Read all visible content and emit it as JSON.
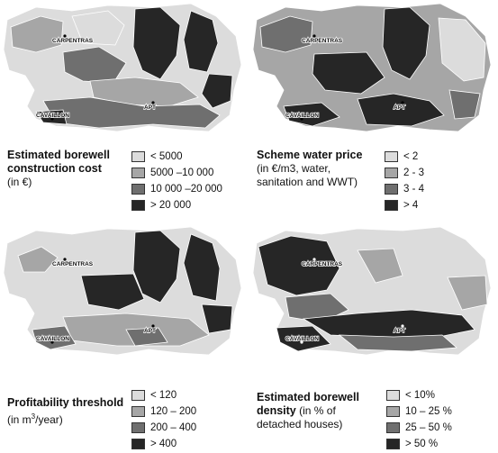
{
  "panels": [
    {
      "id": "construction-cost",
      "title": "Estimated borewell construction cost",
      "title_line1": "Estimated borewell",
      "title_line2": "construction cost",
      "subtitle_prefix": "(in ",
      "subtitle_unit": "€",
      "subtitle_suffix": ")",
      "legend": [
        {
          "label": "< 5000",
          "color": "#dcdcdc"
        },
        {
          "label": "5000 –10 000",
          "color": "#a6a6a6"
        },
        {
          "label": "10 000 –20 000",
          "color": "#6f6f6f"
        },
        {
          "label": "> 20 000",
          "color": "#262626"
        }
      ]
    },
    {
      "id": "water-price",
      "title": "Scheme water price",
      "subtitle_line1": "(in €/m3, water,",
      "subtitle_line2": "sanitation and WWT)",
      "legend": [
        {
          "label": "< 2",
          "color": "#dcdcdc"
        },
        {
          "label": "2 - 3",
          "color": "#a6a6a6"
        },
        {
          "label": "3 - 4",
          "color": "#6f6f6f"
        },
        {
          "label": "> 4",
          "color": "#262626"
        }
      ]
    },
    {
      "id": "profitability",
      "title": "Profitability threshold",
      "subtitle_prefix": "(in m",
      "subtitle_sup": "3",
      "subtitle_suffix": "/year)",
      "legend": [
        {
          "label": "< 120",
          "color": "#dcdcdc"
        },
        {
          "label": "120 – 200",
          "color": "#a6a6a6"
        },
        {
          "label": "200 – 400",
          "color": "#6f6f6f"
        },
        {
          "label": "> 400",
          "color": "#262626"
        }
      ]
    },
    {
      "id": "borewell-density",
      "title": "Estimated borewell density",
      "title_line1": "Estimated borewell",
      "title_line2_bold": "density",
      "title_line2_rest": " (in % of",
      "subtitle_line": "detached houses)",
      "legend": [
        {
          "label": "< 10%",
          "color": "#dcdcdc"
        },
        {
          "label": "10 – 25 %",
          "color": "#a6a6a6"
        },
        {
          "label": "25 – 50 %",
          "color": "#6f6f6f"
        },
        {
          "label": "> 50 %",
          "color": "#262626"
        }
      ]
    }
  ],
  "towns": {
    "carpentras": "CARPENTRAS",
    "cavaillon": "CAVAILLON",
    "apt": "APT"
  }
}
